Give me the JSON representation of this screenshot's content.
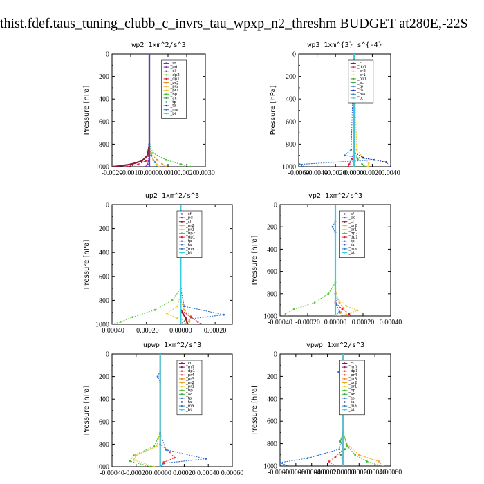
{
  "page_title": "thist.fdef.taus_tuning_clubb_c_invrs_tau_wpxp_n2_threshm  BUDGET at280E,-22S",
  "colors": {
    "_sf": "#7b2fbe",
    "_pd": "#7b2fbe",
    "_cl": "#8b1a3a",
    "_mfl": "#7b1f5e",
    "_dp1": "#d81b3c",
    "_dp2": "#5fc837",
    "_pr1": "#f0c330",
    "_pr2": "#f5a623",
    "_pr3": "#e8902a",
    "_pr4": "#e8302a",
    "_bp": "#3fc030",
    "_bp1": "#2e9a2e",
    "_ac": "#3aa83a",
    "_tp": "#2f6fcc",
    "_ta": "#1a2a9a",
    "_ma": "#3a7ab8",
    "_bt": "#35d0e0"
  },
  "chart_data": [
    {
      "type": "line",
      "title": "wp2   1xm^2/s^3",
      "ylabel": "Pressure [hPa]",
      "xlim": [
        -0.002,
        0.003
      ],
      "ylim": [
        1000,
        0
      ],
      "xticks": [
        -0.002,
        -0.001,
        0.0,
        0.001,
        0.002,
        0.003
      ],
      "xticklabels": [
        "-0.0020",
        "-0.0010",
        "0.0000",
        "0.0010",
        "0.0020",
        "0.0030"
      ],
      "yticks": [
        0,
        200,
        400,
        600,
        800,
        1000
      ],
      "yticklabels": [
        "0",
        "200",
        "400",
        "600",
        "800",
        "1000"
      ],
      "legend": [
        "_sf",
        "_pd",
        "_cl",
        "_dp2",
        "_dp1",
        "_pr3",
        "_pr2",
        "_pr1",
        "_bp",
        "_ac",
        "_tp",
        "_ta",
        "_ma",
        "_bt"
      ],
      "series": [
        {
          "name": "_pd",
          "p": [
            0,
            800,
            900,
            950,
            980,
            1000
          ],
          "v": [
            0.0,
            -1e-05,
            -3e-05,
            -5e-05,
            -0.0001,
            -0.0002
          ]
        },
        {
          "name": "_cl",
          "p": [
            0,
            800,
            900,
            950,
            980,
            1000
          ],
          "v": [
            0.0,
            0.0,
            -0.0001,
            -0.0004,
            -0.001,
            -0.0019
          ]
        },
        {
          "name": "_dp1",
          "p": [
            0,
            800,
            900,
            950,
            980,
            1000
          ],
          "v": [
            0.0,
            0.0,
            -5e-05,
            -0.0002,
            -0.0006,
            -0.0012
          ]
        },
        {
          "name": "_pr3",
          "p": [
            0,
            800,
            880,
            940,
            980,
            1000
          ],
          "v": [
            0.0,
            0.0,
            0.0001,
            0.0004,
            0.0007,
            0.0009
          ]
        },
        {
          "name": "_pr1",
          "p": [
            0,
            800,
            880,
            940,
            980,
            1000
          ],
          "v": [
            0.0,
            0.0,
            5e-05,
            0.0002,
            0.0004,
            0.0005
          ]
        },
        {
          "name": "_bp",
          "p": [
            0,
            800,
            880,
            940,
            980,
            1000
          ],
          "v": [
            0.0,
            0.0,
            0.0002,
            0.0009,
            0.0017,
            0.0022
          ]
        },
        {
          "name": "_tp",
          "p": [
            0,
            800,
            900,
            960,
            1000
          ],
          "v": [
            0.0,
            0.0,
            0.0001,
            0.0003,
            0.0004
          ]
        },
        {
          "name": "_bt",
          "p": [
            0,
            1000
          ],
          "v": [
            0.0,
            0.0
          ]
        },
        {
          "name": "_sf",
          "p": [
            0,
            1000
          ],
          "v": [
            0.0,
            0.0
          ]
        }
      ]
    },
    {
      "type": "line",
      "title": "wp3   1xm^{3} s^{-4}",
      "ylabel": "Pressure [hPa]",
      "xlim": [
        -0.006,
        0.004
      ],
      "ylim": [
        1000,
        0
      ],
      "xticks": [
        -0.006,
        -0.004,
        -0.002,
        0.0,
        0.002,
        0.004
      ],
      "xticklabels": [
        "-0.0060",
        "-0.0040",
        "-0.0020",
        "0.0000",
        "0.0020",
        "0.0040"
      ],
      "yticks": [
        0,
        200,
        400,
        600,
        800,
        1000
      ],
      "yticklabels": [
        "0",
        "200",
        "400",
        "600",
        "800",
        "1000"
      ],
      "legend": [
        "_cl",
        "_dp1",
        "_pr2",
        "_pr1",
        "_bp1",
        "_ac",
        "_tp",
        "_ta",
        "_ma",
        "_bt"
      ],
      "series": [
        {
          "name": "_cl",
          "p": [
            0,
            1000
          ],
          "v": [
            0.0,
            0.0
          ]
        },
        {
          "name": "_dp1",
          "p": [
            0,
            850,
            930,
            980,
            1000
          ],
          "v": [
            0.0,
            0.0,
            -0.0002,
            -0.0005,
            -0.0006
          ]
        },
        {
          "name": "_pr1",
          "p": [
            0,
            850,
            920,
            970,
            1000
          ],
          "v": [
            0.0,
            0.0003,
            0.001,
            0.0016,
            0.0015
          ]
        },
        {
          "name": "_ac",
          "p": [
            0,
            850,
            930,
            980,
            1000
          ],
          "v": [
            0.0,
            0.0,
            0.0004,
            0.0009,
            0.0012
          ]
        },
        {
          "name": "_tp",
          "p": [
            0,
            850,
            900,
            940,
            980,
            1000
          ],
          "v": [
            0.0,
            -0.0003,
            -0.001,
            0.0022,
            -0.0059,
            -0.0055
          ]
        },
        {
          "name": "_ta",
          "p": [
            0,
            870,
            920,
            960,
            1000
          ],
          "v": [
            0.0,
            0.0,
            0.001,
            0.0035,
            0.004
          ]
        },
        {
          "name": "_bt",
          "p": [
            0,
            1000
          ],
          "v": [
            0.0,
            0.0
          ]
        }
      ]
    },
    {
      "type": "line",
      "title": "up2   1xm^2/s^3",
      "ylabel": "Pressure [hPa]",
      "xlim": [
        -0.0004,
        0.0003
      ],
      "ylim": [
        1000,
        0
      ],
      "xticks": [
        -0.0004,
        -0.0002,
        0.0,
        0.0002
      ],
      "xticklabels": [
        "-0.00040",
        "-0.00020",
        "0.00000",
        "0.00020"
      ],
      "yticks": [
        0,
        200,
        400,
        600,
        800,
        1000
      ],
      "yticklabels": [
        "0",
        "200",
        "400",
        "600",
        "800",
        "1000"
      ],
      "legend": [
        "_sf",
        "_pd",
        "_cl",
        "_pr2",
        "_pr1",
        "_dp2",
        "_dp1",
        "_tp",
        "_ta",
        "_ma",
        "_bt"
      ],
      "series": [
        {
          "name": "_dp2",
          "p": [
            0,
            700,
            800,
            880,
            940,
            980,
            1000
          ],
          "v": [
            0.0,
            0.0,
            -5e-05,
            -0.00015,
            -0.00028,
            -0.00035,
            -0.0004
          ]
        },
        {
          "name": "_pr1",
          "p": [
            0,
            750,
            850,
            910,
            950,
            980,
            1000
          ],
          "v": [
            0.0,
            0.0,
            -2e-05,
            -8e-05,
            -2e-05,
            5e-05,
            4e-05
          ]
        },
        {
          "name": "_pr2",
          "p": [
            0,
            800,
            880,
            930,
            970,
            1000
          ],
          "v": [
            0.0,
            0.0,
            2e-05,
            6e-05,
            5e-05,
            2e-05
          ]
        },
        {
          "name": "_tp",
          "p": [
            0,
            150,
            200,
            250,
            700,
            850,
            920,
            960,
            1000
          ],
          "v": [
            0.0,
            0.0,
            2e-05,
            0.0,
            0.0,
            2e-05,
            0.00025,
            3e-05,
            0.0
          ]
        },
        {
          "name": "_dp1",
          "p": [
            0,
            880,
            940,
            980,
            1000
          ],
          "v": [
            0.0,
            0.0,
            6e-05,
            0.0001,
            0.00012
          ]
        },
        {
          "name": "_cl",
          "p": [
            0,
            880,
            950,
            1000
          ],
          "v": [
            0.0,
            0.0,
            3e-05,
            4e-05
          ]
        },
        {
          "name": "_bt",
          "p": [
            0,
            1000
          ],
          "v": [
            0.0,
            0.0
          ]
        }
      ]
    },
    {
      "type": "line",
      "title": "vp2   1xm^2/s^3",
      "ylabel": "Pressure [hPa]",
      "xlim": [
        -0.0004,
        0.0004
      ],
      "ylim": [
        1000,
        0
      ],
      "xticks": [
        -0.0004,
        -0.0002,
        0.0,
        0.0002,
        0.0004
      ],
      "xticklabels": [
        "-0.00040",
        "-0.00020",
        "0.00000",
        "0.00020",
        "0.00040"
      ],
      "yticks": [
        0,
        200,
        400,
        600,
        800,
        1000
      ],
      "yticklabels": [
        "0",
        "200",
        "400",
        "600",
        "800",
        "1000"
      ],
      "legend": [
        "_sf",
        "_pd",
        "_cl",
        "_pr2",
        "_pr1",
        "_dp2",
        "_dp1",
        "_tp",
        "_ta",
        "_ma",
        "_bt"
      ],
      "series": [
        {
          "name": "_dp2",
          "p": [
            0,
            700,
            800,
            880,
            940,
            980,
            1000
          ],
          "v": [
            0.0,
            0.0,
            -5e-05,
            -0.00015,
            -0.0003,
            -0.00036,
            -0.00035
          ]
        },
        {
          "name": "_pr1",
          "p": [
            0,
            750,
            850,
            910,
            950,
            985,
            1000
          ],
          "v": [
            0.0,
            0.0,
            2e-05,
            8e-05,
            0.00016,
            8e-05,
            3e-05
          ]
        },
        {
          "name": "_pr2",
          "p": [
            0,
            800,
            880,
            930,
            970,
            1000
          ],
          "v": [
            0.0,
            0.0,
            3e-05,
            6e-05,
            4e-05,
            2e-05
          ]
        },
        {
          "name": "_tp",
          "p": [
            0,
            150,
            200,
            250,
            800,
            900,
            960,
            1000
          ],
          "v": [
            0.0,
            0.0,
            -2e-05,
            0.0,
            0.0,
            1e-05,
            3e-05,
            0.0
          ]
        },
        {
          "name": "_dp1",
          "p": [
            0,
            880,
            940,
            980,
            1000
          ],
          "v": [
            0.0,
            0.0,
            5e-05,
            0.0001,
            0.00011
          ]
        },
        {
          "name": "_bt",
          "p": [
            0,
            1000
          ],
          "v": [
            0.0,
            0.0
          ]
        }
      ]
    },
    {
      "type": "line",
      "title": "upwp   1xm^2/s^3",
      "ylabel": "Pressure [hPa]",
      "xlim": [
        -0.0004,
        0.0006
      ],
      "ylim": [
        1000,
        0
      ],
      "xticks": [
        -0.0004,
        -0.0002,
        0.0,
        0.0002,
        0.0004,
        0.0006
      ],
      "xticklabels": [
        "-0.00040",
        "-0.00020",
        "0.00000",
        "0.00020",
        "0.00040",
        "0.00060"
      ],
      "yticks": [
        0,
        200,
        400,
        600,
        800,
        1000
      ],
      "yticklabels": [
        "0",
        "200",
        "400",
        "600",
        "800",
        "1000"
      ],
      "legend": [
        "_cl",
        "_mfl",
        "_dp1",
        "_pr4",
        "_pr3",
        "_pr2",
        "_pr1",
        "_bp",
        "_ac",
        "_tp",
        "_ta",
        "_ma",
        "_bt"
      ],
      "series": [
        {
          "name": "_bp",
          "p": [
            0,
            700,
            820,
            900,
            950,
            1000
          ],
          "v": [
            0.0,
            0.0,
            -5e-05,
            -0.00022,
            -0.00025,
            -8e-05
          ]
        },
        {
          "name": "_pr1",
          "p": [
            0,
            700,
            820,
            900,
            940,
            1000
          ],
          "v": [
            0.0,
            0.0,
            -3e-05,
            -0.0002,
            -0.00022,
            -5e-05
          ]
        },
        {
          "name": "_pr4",
          "p": [
            0,
            800,
            870,
            920,
            960,
            1000
          ],
          "v": [
            0.0,
            0.0,
            8e-05,
            0.00012,
            3e-05,
            0.0
          ]
        },
        {
          "name": "_tp",
          "p": [
            0,
            150,
            200,
            250,
            700,
            850,
            930,
            970,
            1000
          ],
          "v": [
            0.0,
            0.0,
            -2e-05,
            0.0,
            0.0,
            5e-05,
            0.00038,
            3e-05,
            0.0
          ]
        },
        {
          "name": "_cl",
          "p": [
            0,
            1000
          ],
          "v": [
            0.0,
            0.0
          ]
        },
        {
          "name": "_bt",
          "p": [
            0,
            1000
          ],
          "v": [
            0.0,
            0.0
          ]
        }
      ]
    },
    {
      "type": "line",
      "title": "vpwp   1xm^2/s^3",
      "ylabel": "Pressure [hPa]",
      "xlim": [
        -0.0008,
        0.0006
      ],
      "ylim": [
        1000,
        0
      ],
      "xticks": [
        -0.0008,
        -0.0006,
        -0.0004,
        -0.0002,
        0.0,
        0.0002,
        0.0004,
        0.0006
      ],
      "xticklabels": [
        "-0.00080",
        "-0.00060",
        "-0.00040",
        "-0.00020",
        "0.00000",
        "0.00020",
        "0.00040",
        "0.00060"
      ],
      "yticks": [
        0,
        200,
        400,
        600,
        800,
        1000
      ],
      "yticklabels": [
        "0",
        "200",
        "400",
        "600",
        "800",
        "1000"
      ],
      "legend": [
        "_cl",
        "_mfl",
        "_dp1",
        "_pr4",
        "_pr3",
        "_pr2",
        "_pr1",
        "_bp",
        "_ac",
        "_tp",
        "_ta",
        "_ma",
        "_bt"
      ],
      "series": [
        {
          "name": "_tp",
          "p": [
            0,
            120,
            160,
            200,
            700,
            850,
            930,
            970,
            1000
          ],
          "v": [
            0.0,
            0.0,
            -6e-05,
            0.0,
            0.0,
            -5e-05,
            -0.00045,
            -0.0008,
            -0.0007
          ]
        },
        {
          "name": "_pr2",
          "p": [
            0,
            150,
            200,
            250,
            700,
            800,
            900,
            960,
            1000
          ],
          "v": [
            0.0,
            0.0,
            3e-05,
            0.0,
            0.0,
            4e-05,
            0.0002,
            0.00045,
            0.0005
          ]
        },
        {
          "name": "_bp",
          "p": [
            0,
            700,
            820,
            900,
            960,
            1000
          ],
          "v": [
            0.0,
            0.0,
            5e-05,
            0.00015,
            0.0003,
            0.00048
          ]
        },
        {
          "name": "_pr4",
          "p": [
            0,
            850,
            920,
            960,
            1000
          ],
          "v": [
            0.0,
            0.0,
            -0.0001,
            -0.00018,
            -0.0001
          ]
        },
        {
          "name": "_ac",
          "p": [
            0,
            700,
            780,
            850,
            900,
            1000
          ],
          "v": [
            0.0,
            0.0,
            -4e-05,
            2e-05,
            -3e-05,
            0.0
          ]
        },
        {
          "name": "_cl",
          "p": [
            0,
            1000
          ],
          "v": [
            0.0,
            0.0
          ]
        },
        {
          "name": "_bt",
          "p": [
            0,
            1000
          ],
          "v": [
            0.0,
            0.0
          ]
        }
      ]
    }
  ]
}
